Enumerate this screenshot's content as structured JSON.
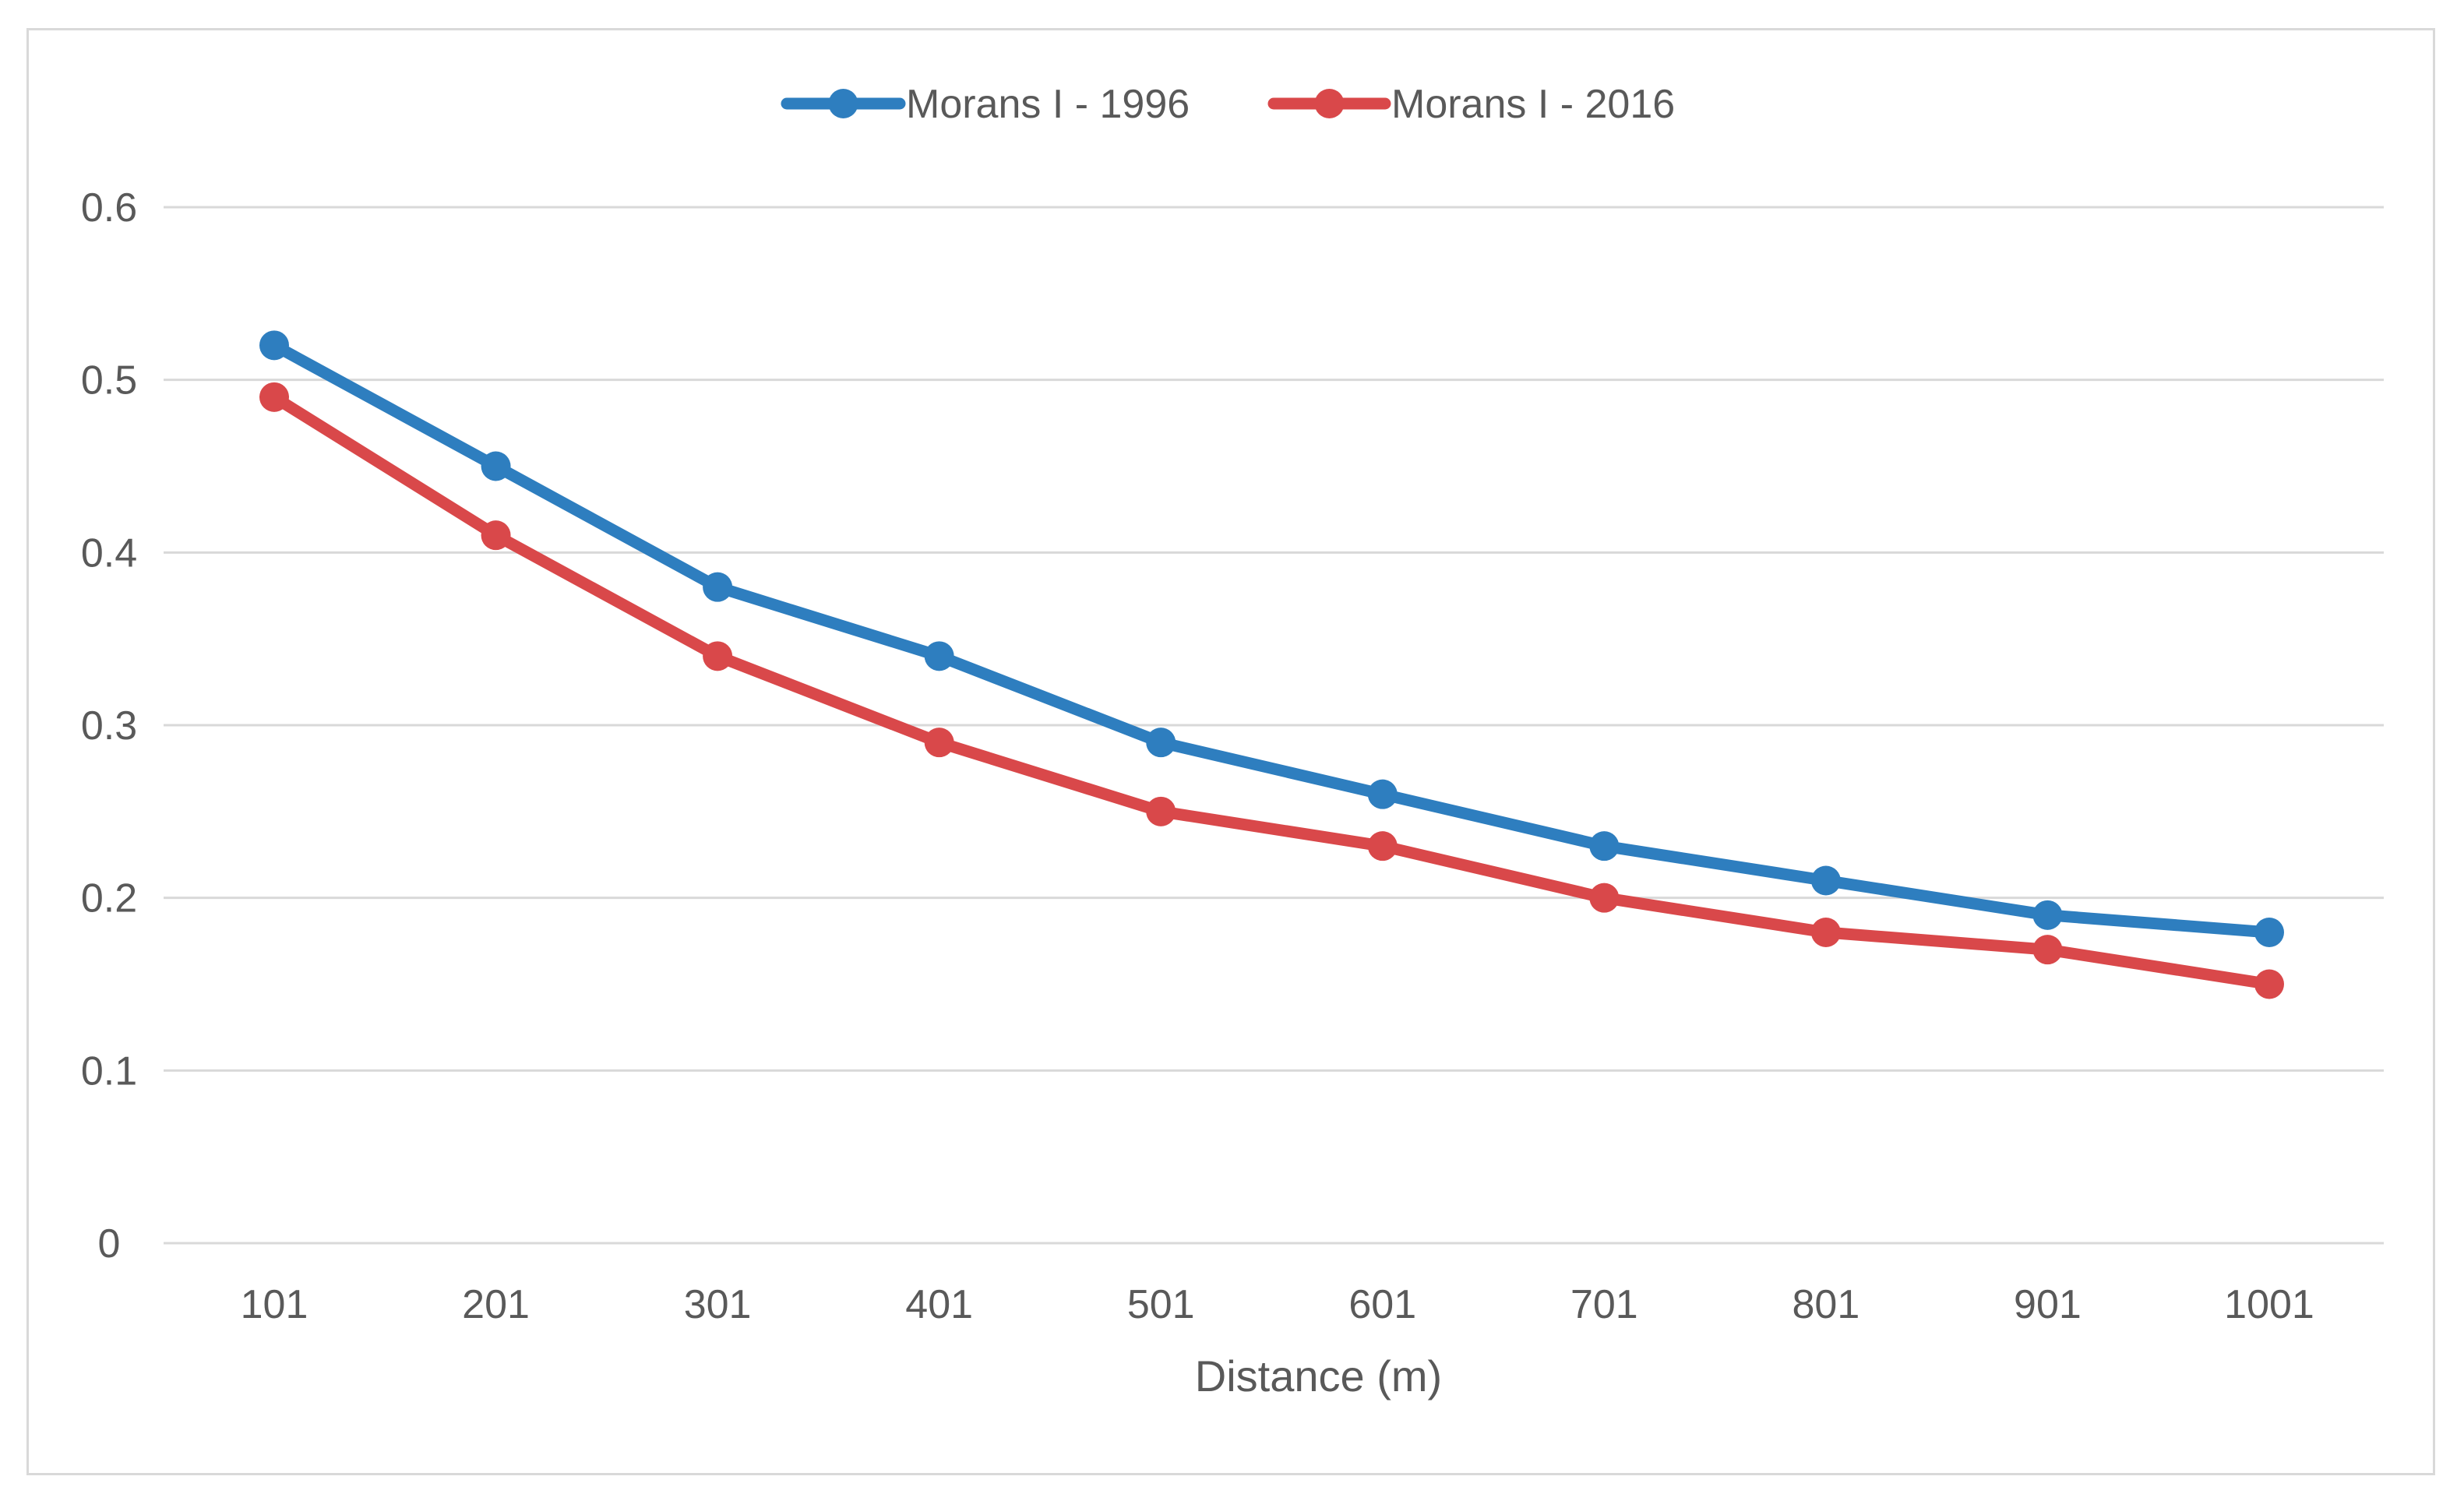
{
  "chart_data": {
    "type": "line",
    "title": "",
    "xlabel": "Distance (m)",
    "ylabel": "",
    "categories": [
      "101",
      "201",
      "301",
      "401",
      "501",
      "601",
      "701",
      "801",
      "901",
      "1001"
    ],
    "ylim": [
      0,
      0.6
    ],
    "yticks": [
      "0",
      "0.1",
      "0.2",
      "0.3",
      "0.4",
      "0.5",
      "0.6"
    ],
    "grid": true,
    "legend_position": "top-center",
    "series": [
      {
        "name": "Morans I - 1996",
        "color": "#2e7ebf",
        "values": [
          0.52,
          0.45,
          0.38,
          0.34,
          0.29,
          0.26,
          0.23,
          0.21,
          0.19,
          0.18
        ]
      },
      {
        "name": "Morans I - 2016",
        "color": "#d9484a",
        "values": [
          0.49,
          0.41,
          0.34,
          0.29,
          0.25,
          0.23,
          0.2,
          0.18,
          0.17,
          0.15
        ]
      }
    ]
  }
}
